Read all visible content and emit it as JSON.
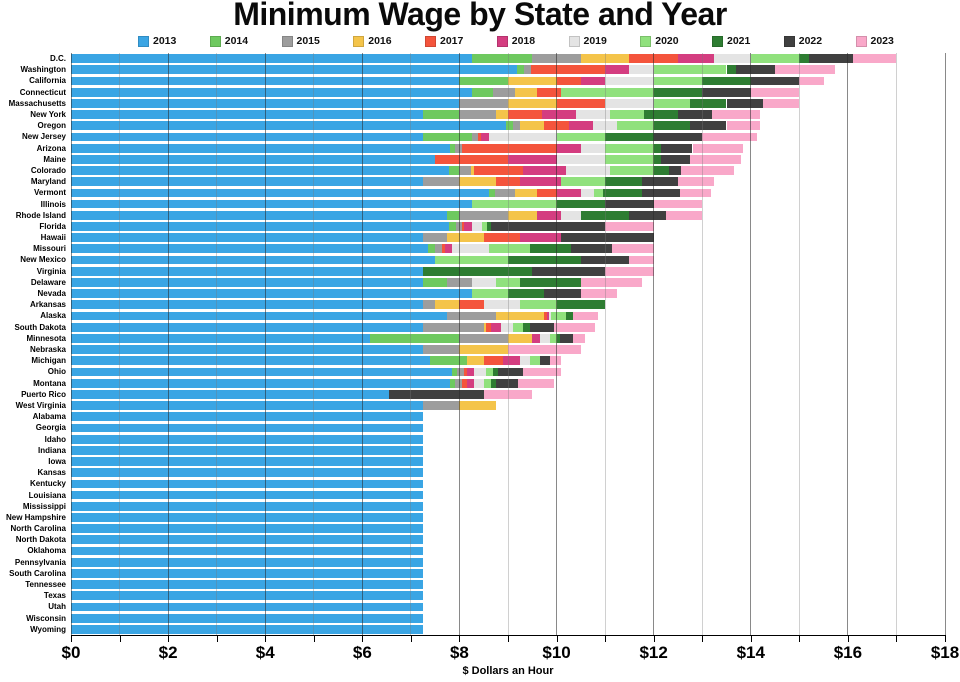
{
  "chart_data": {
    "type": "bar",
    "orientation": "horizontal",
    "stacked": true,
    "title": "Minimum Wage by State and Year",
    "xlabel": "$ Dollars an Hour",
    "xlim": [
      0,
      18
    ],
    "x_major_tick": 2,
    "x_minor_tick": 1,
    "x_tick_labels": [
      "$0",
      "$2",
      "$4",
      "$6",
      "$8",
      "$10",
      "$12",
      "$14",
      "$16",
      "$18"
    ],
    "legend_position": "top",
    "grid": "vertical, every $1, darker at labeled $2 steps, drawn over bars",
    "years": [
      "2013",
      "2014",
      "2015",
      "2016",
      "2017",
      "2018",
      "2019",
      "2020",
      "2021",
      "2022",
      "2023"
    ],
    "year_colors": {
      "2013": "#3aa5e4",
      "2014": "#6ec95f",
      "2015": "#9d9d9d",
      "2016": "#f4c44a",
      "2017": "#f4543c",
      "2018": "#d43d80",
      "2019": "#e4e4e4",
      "2020": "#90e17d",
      "2021": "#2e7d32",
      "2022": "#404040",
      "2023": "#f9a8c9"
    },
    "value_semantics": "minimum wage in $/hour per year; bar segments span from previous years' maximum to that year's value",
    "states": [
      {
        "name": "D.C.",
        "values": [
          8.25,
          9.5,
          10.5,
          11.5,
          12.5,
          13.25,
          14.0,
          15.0,
          15.2,
          16.1,
          17.0
        ]
      },
      {
        "name": "Washington",
        "values": [
          9.19,
          9.32,
          9.47,
          9.47,
          11.0,
          11.5,
          12.0,
          13.5,
          13.69,
          14.49,
          15.74
        ]
      },
      {
        "name": "California",
        "values": [
          8.0,
          9.0,
          9.0,
          10.0,
          10.5,
          11.0,
          12.0,
          13.0,
          14.0,
          15.0,
          15.5
        ]
      },
      {
        "name": "Connecticut",
        "values": [
          8.25,
          8.7,
          9.15,
          9.6,
          10.1,
          10.1,
          10.1,
          12.0,
          13.0,
          14.0,
          15.0
        ]
      },
      {
        "name": "Massachusetts",
        "values": [
          8.0,
          8.0,
          9.0,
          10.0,
          11.0,
          11.0,
          12.0,
          12.75,
          13.5,
          14.25,
          15.0
        ]
      },
      {
        "name": "New York",
        "values": [
          7.25,
          8.0,
          8.75,
          9.0,
          9.7,
          10.4,
          11.1,
          11.8,
          12.5,
          13.2,
          14.2
        ]
      },
      {
        "name": "Oregon",
        "values": [
          8.95,
          9.1,
          9.25,
          9.75,
          10.25,
          10.75,
          11.25,
          12.0,
          12.75,
          13.5,
          14.2
        ]
      },
      {
        "name": "New Jersey",
        "values": [
          7.25,
          8.25,
          8.38,
          8.38,
          8.44,
          8.6,
          10.0,
          11.0,
          12.0,
          13.0,
          14.13
        ]
      },
      {
        "name": "Arizona",
        "values": [
          7.8,
          7.9,
          8.05,
          8.05,
          10.0,
          10.5,
          11.0,
          12.0,
          12.15,
          12.8,
          13.85
        ]
      },
      {
        "name": "Maine",
        "values": [
          7.5,
          7.5,
          7.5,
          7.5,
          9.0,
          10.0,
          11.0,
          12.0,
          12.15,
          12.75,
          13.8
        ]
      },
      {
        "name": "Colorado",
        "values": [
          7.78,
          8.0,
          8.23,
          8.31,
          9.3,
          10.2,
          11.1,
          12.0,
          12.32,
          12.56,
          13.65
        ]
      },
      {
        "name": "Maryland",
        "values": [
          7.25,
          7.25,
          8.0,
          8.75,
          9.25,
          10.1,
          10.1,
          11.0,
          11.75,
          12.5,
          13.25
        ]
      },
      {
        "name": "Vermont",
        "values": [
          8.6,
          8.73,
          9.15,
          9.6,
          10.0,
          10.5,
          10.78,
          10.96,
          11.75,
          12.55,
          13.18
        ]
      },
      {
        "name": "Illinois",
        "values": [
          8.25,
          8.25,
          8.25,
          8.25,
          8.25,
          8.25,
          8.25,
          10.0,
          11.0,
          12.0,
          13.0
        ]
      },
      {
        "name": "Rhode Island",
        "values": [
          7.75,
          8.0,
          9.0,
          9.6,
          9.6,
          10.1,
          10.5,
          10.5,
          11.5,
          12.25,
          13.0
        ]
      },
      {
        "name": "Florida",
        "values": [
          7.79,
          7.93,
          8.05,
          8.05,
          8.1,
          8.25,
          8.46,
          8.56,
          8.65,
          11.0,
          12.0
        ]
      },
      {
        "name": "Hawaii",
        "values": [
          7.25,
          7.25,
          7.75,
          8.5,
          9.25,
          10.1,
          10.1,
          10.1,
          10.1,
          12.0,
          12.0
        ]
      },
      {
        "name": "Missouri",
        "values": [
          7.35,
          7.5,
          7.65,
          7.65,
          7.7,
          7.85,
          8.6,
          9.45,
          10.3,
          11.15,
          12.0
        ]
      },
      {
        "name": "New Mexico",
        "values": [
          7.5,
          7.5,
          7.5,
          7.5,
          7.5,
          7.5,
          7.5,
          9.0,
          10.5,
          11.5,
          12.0
        ]
      },
      {
        "name": "Virginia",
        "values": [
          7.25,
          7.25,
          7.25,
          7.25,
          7.25,
          7.25,
          7.25,
          7.25,
          9.5,
          11.0,
          12.0
        ]
      },
      {
        "name": "Delaware",
        "values": [
          7.25,
          7.75,
          8.25,
          8.25,
          8.25,
          8.25,
          8.75,
          9.25,
          10.5,
          10.5,
          11.75
        ]
      },
      {
        "name": "Nevada",
        "values": [
          8.25,
          8.25,
          8.25,
          8.25,
          8.25,
          8.25,
          8.25,
          9.0,
          9.75,
          10.5,
          11.25
        ]
      },
      {
        "name": "Arkansas",
        "values": [
          7.25,
          7.25,
          7.5,
          8.0,
          8.5,
          8.5,
          9.25,
          10.0,
          11.0,
          11.0,
          11.0
        ]
      },
      {
        "name": "Alaska",
        "values": [
          7.75,
          7.75,
          8.75,
          9.75,
          9.8,
          9.84,
          9.89,
          10.19,
          10.34,
          10.34,
          10.85
        ]
      },
      {
        "name": "South Dakota",
        "values": [
          7.25,
          7.25,
          8.5,
          8.55,
          8.65,
          8.85,
          9.1,
          9.3,
          9.45,
          9.95,
          10.8
        ]
      },
      {
        "name": "Minnesota",
        "values": [
          6.15,
          8.0,
          9.0,
          9.5,
          9.5,
          9.65,
          9.86,
          10.0,
          10.08,
          10.33,
          10.59
        ]
      },
      {
        "name": "Nebraska",
        "values": [
          7.25,
          7.25,
          8.0,
          9.0,
          9.0,
          9.0,
          9.0,
          9.0,
          9.0,
          9.0,
          10.5
        ]
      },
      {
        "name": "Michigan",
        "values": [
          7.4,
          8.15,
          8.15,
          8.5,
          8.9,
          9.25,
          9.45,
          9.65,
          9.65,
          9.87,
          10.1
        ]
      },
      {
        "name": "Ohio",
        "values": [
          7.85,
          7.95,
          8.1,
          8.1,
          8.15,
          8.3,
          8.55,
          8.7,
          8.8,
          9.3,
          10.1
        ]
      },
      {
        "name": "Montana",
        "values": [
          7.8,
          7.9,
          8.05,
          8.05,
          8.15,
          8.3,
          8.5,
          8.65,
          8.75,
          9.2,
          9.95
        ]
      },
      {
        "name": "Puerto Rico",
        "values": [
          6.55,
          6.55,
          6.55,
          6.55,
          6.55,
          6.55,
          6.55,
          6.55,
          6.55,
          8.5,
          9.5
        ]
      },
      {
        "name": "West Virginia",
        "values": [
          7.25,
          7.25,
          8.0,
          8.75,
          8.75,
          8.75,
          8.75,
          8.75,
          8.75,
          8.75,
          8.75
        ]
      },
      {
        "name": "Alabama",
        "values": [
          7.25,
          7.25,
          7.25,
          7.25,
          7.25,
          7.25,
          7.25,
          7.25,
          7.25,
          7.25,
          7.25
        ]
      },
      {
        "name": "Georgia",
        "values": [
          7.25,
          7.25,
          7.25,
          7.25,
          7.25,
          7.25,
          7.25,
          7.25,
          7.25,
          7.25,
          7.25
        ]
      },
      {
        "name": "Idaho",
        "values": [
          7.25,
          7.25,
          7.25,
          7.25,
          7.25,
          7.25,
          7.25,
          7.25,
          7.25,
          7.25,
          7.25
        ]
      },
      {
        "name": "Indiana",
        "values": [
          7.25,
          7.25,
          7.25,
          7.25,
          7.25,
          7.25,
          7.25,
          7.25,
          7.25,
          7.25,
          7.25
        ]
      },
      {
        "name": "Iowa",
        "values": [
          7.25,
          7.25,
          7.25,
          7.25,
          7.25,
          7.25,
          7.25,
          7.25,
          7.25,
          7.25,
          7.25
        ]
      },
      {
        "name": "Kansas",
        "values": [
          7.25,
          7.25,
          7.25,
          7.25,
          7.25,
          7.25,
          7.25,
          7.25,
          7.25,
          7.25,
          7.25
        ]
      },
      {
        "name": "Kentucky",
        "values": [
          7.25,
          7.25,
          7.25,
          7.25,
          7.25,
          7.25,
          7.25,
          7.25,
          7.25,
          7.25,
          7.25
        ]
      },
      {
        "name": "Louisiana",
        "values": [
          7.25,
          7.25,
          7.25,
          7.25,
          7.25,
          7.25,
          7.25,
          7.25,
          7.25,
          7.25,
          7.25
        ]
      },
      {
        "name": "Mississippi",
        "values": [
          7.25,
          7.25,
          7.25,
          7.25,
          7.25,
          7.25,
          7.25,
          7.25,
          7.25,
          7.25,
          7.25
        ]
      },
      {
        "name": "New Hampshire",
        "values": [
          7.25,
          7.25,
          7.25,
          7.25,
          7.25,
          7.25,
          7.25,
          7.25,
          7.25,
          7.25,
          7.25
        ]
      },
      {
        "name": "North Carolina",
        "values": [
          7.25,
          7.25,
          7.25,
          7.25,
          7.25,
          7.25,
          7.25,
          7.25,
          7.25,
          7.25,
          7.25
        ]
      },
      {
        "name": "North Dakota",
        "values": [
          7.25,
          7.25,
          7.25,
          7.25,
          7.25,
          7.25,
          7.25,
          7.25,
          7.25,
          7.25,
          7.25
        ]
      },
      {
        "name": "Oklahoma",
        "values": [
          7.25,
          7.25,
          7.25,
          7.25,
          7.25,
          7.25,
          7.25,
          7.25,
          7.25,
          7.25,
          7.25
        ]
      },
      {
        "name": "Pennsylvania",
        "values": [
          7.25,
          7.25,
          7.25,
          7.25,
          7.25,
          7.25,
          7.25,
          7.25,
          7.25,
          7.25,
          7.25
        ]
      },
      {
        "name": "South Carolina",
        "values": [
          7.25,
          7.25,
          7.25,
          7.25,
          7.25,
          7.25,
          7.25,
          7.25,
          7.25,
          7.25,
          7.25
        ]
      },
      {
        "name": "Tennessee",
        "values": [
          7.25,
          7.25,
          7.25,
          7.25,
          7.25,
          7.25,
          7.25,
          7.25,
          7.25,
          7.25,
          7.25
        ]
      },
      {
        "name": "Texas",
        "values": [
          7.25,
          7.25,
          7.25,
          7.25,
          7.25,
          7.25,
          7.25,
          7.25,
          7.25,
          7.25,
          7.25
        ]
      },
      {
        "name": "Utah",
        "values": [
          7.25,
          7.25,
          7.25,
          7.25,
          7.25,
          7.25,
          7.25,
          7.25,
          7.25,
          7.25,
          7.25
        ]
      },
      {
        "name": "Wisconsin",
        "values": [
          7.25,
          7.25,
          7.25,
          7.25,
          7.25,
          7.25,
          7.25,
          7.25,
          7.25,
          7.25,
          7.25
        ]
      },
      {
        "name": "Wyoming",
        "values": [
          7.25,
          7.25,
          7.25,
          7.25,
          7.25,
          7.25,
          7.25,
          7.25,
          7.25,
          7.25,
          7.25
        ]
      }
    ]
  }
}
